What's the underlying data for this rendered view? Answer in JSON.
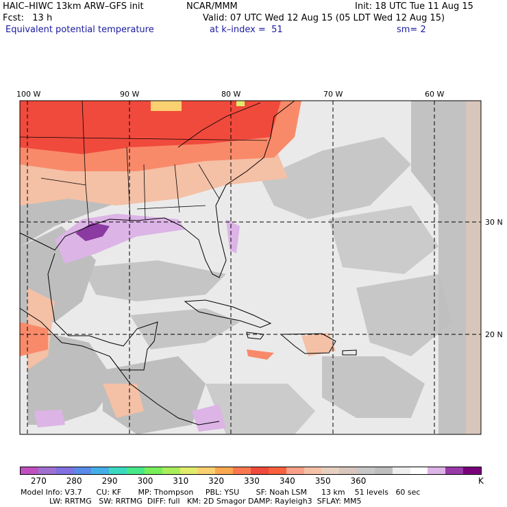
{
  "header": {
    "model": "HAIC–HIWC 13km ARW–GFS init",
    "org": "NCAR/MMM",
    "init": "Init: 18 UTC Tue 11 Aug 15",
    "fcst": "Fcst:   13 h",
    "valid": "Valid: 07 UTC Wed 12 Aug 15 (05 LDT Wed 12 Aug 15)",
    "field": "Equivalent potential temperature",
    "level": "at k–index =  51",
    "smoothing": "sm= 2"
  },
  "map": {
    "lon_labels": [
      "100 W",
      "90 W",
      "80 W",
      "70 W",
      "60 W"
    ],
    "lat_labels": [
      "30 N",
      "20 N"
    ],
    "colors": {
      "hot": "#f04a3c",
      "warm": "#f88a6a",
      "peach": "#f4c0a6",
      "tan": "#d8c6bc",
      "gray": "#bebebe",
      "light": "#eaeaea",
      "lilac": "#dcb4e6",
      "purple": "#8a3aa0"
    }
  },
  "colorbar": {
    "colors": [
      "#c050c0",
      "#a070d0",
      "#8070e0",
      "#5a8ae8",
      "#46aee6",
      "#3cd8c0",
      "#46e88a",
      "#78ee5a",
      "#a8ee5a",
      "#e0ec6a",
      "#fad070",
      "#faa850",
      "#fa7850",
      "#f04a3c",
      "#f8603e",
      "#f8a088",
      "#f4c0a6",
      "#e8d0c0",
      "#d8c6bc",
      "#c8c8c8",
      "#bebebe",
      "#eeeeee",
      "#ffffff",
      "#dcb4e6",
      "#9a3aa8",
      "#78007a"
    ],
    "labels": [
      "270",
      "280",
      "290",
      "300",
      "310",
      "320",
      "330",
      "340",
      "350",
      "360",
      "K"
    ]
  },
  "footer": {
    "line1": "Model Info: V3.7      CU: KF       MP: Thompson     PBL: YSU       SF: Noah LSM      13 km    51 levels   60 sec",
    "line2": "            LW: RRTMG   SW: RRTMG  DIFF: full   KM: 2D Smagor DAMP: Rayleigh3  SFLAY: MM5"
  }
}
